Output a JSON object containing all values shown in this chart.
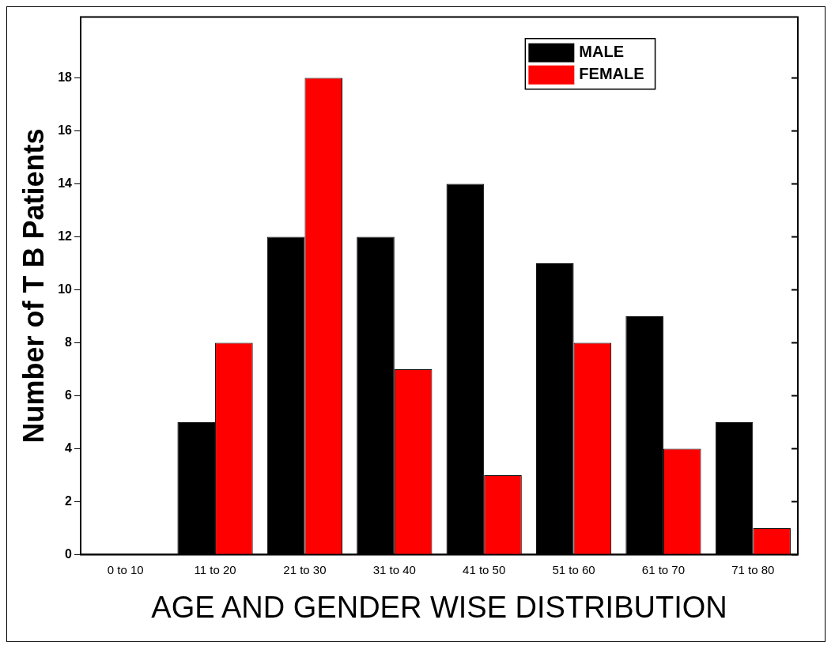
{
  "chart_data": {
    "type": "bar",
    "xlabel": "AGE AND GENDER WISE DISTRIBUTION",
    "ylabel": "Number of T B Patients",
    "categories": [
      "0 to 10",
      "11 to 20",
      "21 to 30",
      "31 to 40",
      "41 to 50",
      "51 to 60",
      "61 to 70",
      "71 to 80"
    ],
    "series": [
      {
        "name": "MALE",
        "color": "#000000",
        "values": [
          0,
          5,
          12,
          12,
          14,
          11,
          9,
          5
        ]
      },
      {
        "name": "FEMALE",
        "color": "#ff0000",
        "values": [
          0,
          8,
          18,
          7,
          3,
          8,
          4,
          1
        ]
      }
    ],
    "ylim": [
      0,
      20.3
    ],
    "yticks": [
      0,
      2,
      4,
      6,
      8,
      10,
      12,
      14,
      16,
      18
    ],
    "grid": false,
    "legend": "top right"
  }
}
